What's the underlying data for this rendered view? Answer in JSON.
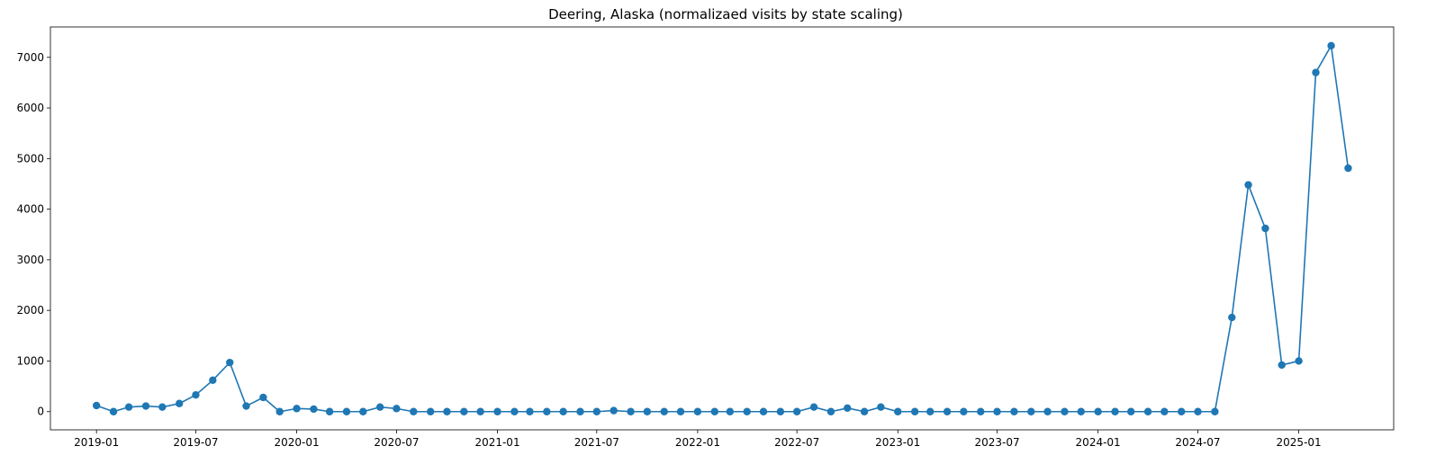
{
  "chart_data": {
    "type": "line",
    "title": "Deering, Alaska (normalizaed visits by state scaling)",
    "xlabel": "",
    "ylabel": "",
    "grid": false,
    "legend": "none",
    "line_color": "#1f77b4",
    "marker": "circle",
    "xlim": [
      "2018-10-09",
      "2025-06-23"
    ],
    "ylim": [
      -360,
      7600
    ],
    "x_tick_labels": [
      "2019-01",
      "2019-07",
      "2020-01",
      "2020-07",
      "2021-01",
      "2021-07",
      "2022-01",
      "2022-07",
      "2023-01",
      "2023-07",
      "2024-01",
      "2024-07",
      "2025-01"
    ],
    "y_ticks": [
      0,
      1000,
      2000,
      3000,
      4000,
      5000,
      6000,
      7000
    ],
    "series": [
      {
        "name": "",
        "x": [
          "2019-01",
          "2019-02",
          "2019-03",
          "2019-04",
          "2019-05",
          "2019-06",
          "2019-07",
          "2019-08",
          "2019-09",
          "2019-10",
          "2019-11",
          "2019-12",
          "2020-01",
          "2020-02",
          "2020-03",
          "2020-04",
          "2020-05",
          "2020-06",
          "2020-07",
          "2020-08",
          "2020-09",
          "2020-10",
          "2020-11",
          "2020-12",
          "2021-01",
          "2021-02",
          "2021-03",
          "2021-04",
          "2021-05",
          "2021-06",
          "2021-07",
          "2021-08",
          "2021-09",
          "2021-10",
          "2021-11",
          "2021-12",
          "2022-01",
          "2022-02",
          "2022-03",
          "2022-04",
          "2022-05",
          "2022-06",
          "2022-07",
          "2022-08",
          "2022-09",
          "2022-10",
          "2022-11",
          "2022-12",
          "2023-01",
          "2023-02",
          "2023-03",
          "2023-04",
          "2023-05",
          "2023-06",
          "2023-07",
          "2023-08",
          "2023-09",
          "2023-10",
          "2023-11",
          "2023-12",
          "2024-01",
          "2024-02",
          "2024-03",
          "2024-04",
          "2024-05",
          "2024-06",
          "2024-07",
          "2024-08",
          "2024-09",
          "2024-10",
          "2024-11",
          "2024-12",
          "2025-01",
          "2025-02",
          "2025-03",
          "2025-04"
        ],
        "values": [
          120,
          0,
          90,
          110,
          90,
          160,
          330,
          620,
          970,
          110,
          280,
          0,
          60,
          50,
          0,
          0,
          0,
          90,
          60,
          0,
          0,
          0,
          0,
          0,
          0,
          0,
          0,
          0,
          0,
          0,
          0,
          20,
          0,
          0,
          0,
          0,
          0,
          0,
          0,
          0,
          0,
          0,
          0,
          90,
          0,
          70,
          0,
          90,
          0,
          0,
          0,
          0,
          0,
          0,
          0,
          0,
          0,
          0,
          0,
          0,
          0,
          0,
          0,
          0,
          0,
          0,
          0,
          0,
          1860,
          4480,
          3620,
          920,
          1000,
          6700,
          7230,
          4810
        ]
      }
    ]
  }
}
